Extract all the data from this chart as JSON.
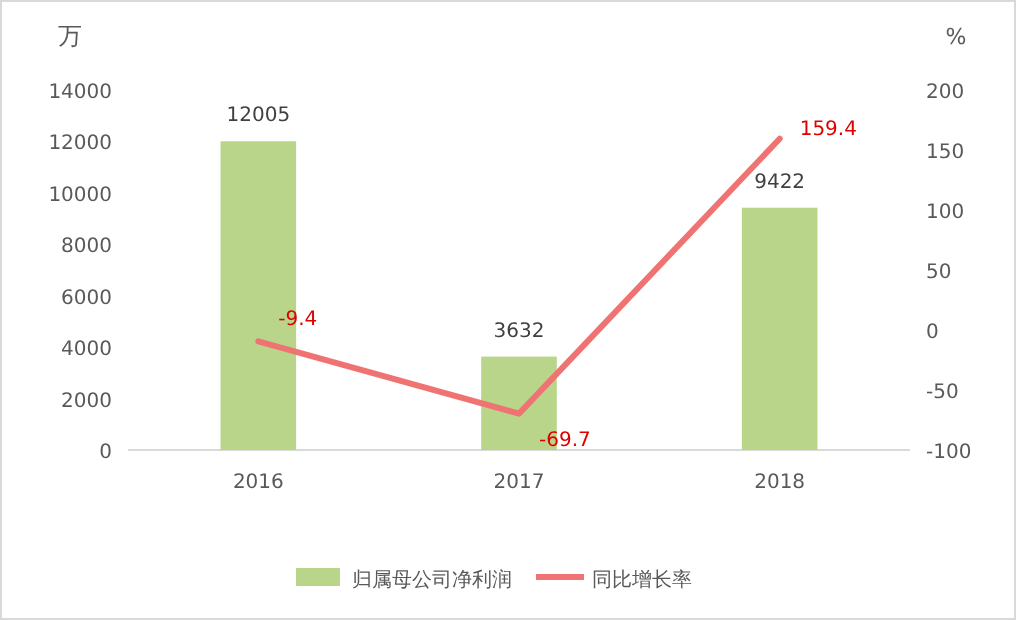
{
  "chart_data": {
    "type": "bar",
    "categories": [
      "2016",
      "2017",
      "2018"
    ],
    "series": [
      {
        "name": "归属母公司净利润",
        "color": "#b8d58a",
        "values": [
          12005,
          3632,
          9422
        ]
      },
      {
        "name": "同比增长率",
        "type": "line",
        "axis": "y2",
        "color": "#f07373",
        "values": [
          -9.4,
          -69.7,
          159.4
        ]
      }
    ],
    "ylabel": "万",
    "y2label": "%",
    "ylim": [
      0,
      14000
    ],
    "yticks": [
      0,
      2000,
      4000,
      6000,
      8000,
      10000,
      12000,
      14000
    ],
    "y2lim": [
      -100,
      200
    ],
    "y2ticks": [
      -100,
      -50,
      0,
      50,
      100,
      150,
      200
    ],
    "data_labels": true,
    "legend": "bottom",
    "grid": false
  }
}
